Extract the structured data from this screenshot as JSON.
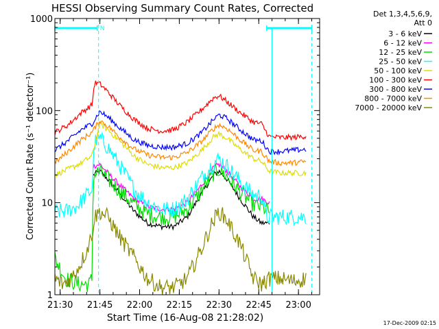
{
  "chart_data": {
    "type": "line",
    "title": "HESSI Observing Summary Count Rates, Corrected",
    "xlabel": "Start Time (16-Aug-08 21:28:02)",
    "ylabel": "Corrected Count Rate (s⁻¹ detector⁻¹)",
    "x_unit": "minutes after 21:28:02",
    "xlim": [
      0,
      100
    ],
    "ylim": [
      1,
      1000
    ],
    "y_scale": "log",
    "x_ticks": [
      {
        "x": 2,
        "label": "21:30"
      },
      {
        "x": 17,
        "label": "21:45"
      },
      {
        "x": 32,
        "label": "22:00"
      },
      {
        "x": 47,
        "label": "22:15"
      },
      {
        "x": 62,
        "label": "22:30"
      },
      {
        "x": 77,
        "label": "22:45"
      },
      {
        "x": 92,
        "label": "23:00"
      }
    ],
    "y_ticks": [
      {
        "y": 1,
        "label": "1"
      },
      {
        "y": 10,
        "label": "10"
      },
      {
        "y": 100,
        "label": "100"
      },
      {
        "y": 1000,
        "label": "1000"
      }
    ],
    "legend_title": [
      "Det 1,3,4,5,6,9,",
      "Att 0"
    ],
    "legend_placement": "right, outside plot",
    "series": [
      {
        "name": "3 - 6 keV",
        "color": "#000000",
        "x": [
          14.5,
          17,
          20,
          25,
          30,
          35,
          40,
          45,
          50,
          55,
          60,
          62,
          65,
          70,
          75,
          78,
          81
        ],
        "values": [
          20,
          22,
          18,
          12,
          8,
          6,
          5.5,
          5.5,
          7,
          12,
          20,
          22,
          18,
          11,
          7,
          6,
          6
        ]
      },
      {
        "name": "6 - 12 keV",
        "color": "#ff00ff",
        "x": [
          14.5,
          17,
          20,
          25,
          30,
          35,
          40,
          45,
          50,
          55,
          60,
          62,
          65,
          70,
          75,
          78,
          81
        ],
        "values": [
          25,
          26,
          21,
          15,
          11,
          9,
          8.5,
          8.5,
          10,
          15,
          24,
          26,
          22,
          15,
          11,
          11,
          10
        ]
      },
      {
        "name": "12 - 25 keV",
        "color": "#00dd00",
        "x": [
          0,
          4,
          9,
          13,
          14,
          14.5,
          17,
          20,
          25,
          30,
          35,
          40,
          45,
          50,
          55,
          60,
          62,
          65,
          70,
          75,
          78,
          81
        ],
        "values": [
          2.5,
          1.5,
          1.3,
          1.3,
          1.5,
          20,
          22,
          18,
          13,
          9.5,
          7.5,
          7,
          7,
          8.5,
          13,
          21,
          23,
          19,
          13,
          9.5,
          9,
          8
        ]
      },
      {
        "name": "25 - 50 keV",
        "color": "#00ffff",
        "x": [
          0,
          4,
          8,
          12,
          14,
          15,
          17,
          20,
          25,
          30,
          35,
          40,
          45,
          50,
          55,
          60,
          62,
          65,
          70,
          75,
          78,
          80,
          84,
          88,
          92,
          95
        ],
        "values": [
          8,
          8,
          9,
          12,
          14,
          45,
          50,
          40,
          24,
          14,
          10,
          8.5,
          8.5,
          11,
          18,
          27,
          30,
          25,
          17,
          12,
          12,
          7,
          7,
          7,
          7,
          7
        ]
      },
      {
        "name": "50 - 100 keV",
        "color": "#dddd00",
        "x": [
          0,
          5,
          10,
          14,
          17,
          20,
          25,
          30,
          35,
          40,
          45,
          50,
          55,
          60,
          62,
          65,
          70,
          75,
          78,
          81,
          85,
          90,
          95
        ],
        "values": [
          20,
          23,
          27,
          32,
          72,
          62,
          45,
          32,
          26,
          24,
          24,
          27,
          36,
          52,
          56,
          50,
          38,
          30,
          28,
          22,
          21,
          21,
          21
        ]
      },
      {
        "name": "100 - 300 keV",
        "color": "#ff0000",
        "x": [
          0,
          5,
          10,
          14,
          15,
          17,
          20,
          25,
          30,
          35,
          40,
          45,
          50,
          55,
          60,
          62,
          65,
          70,
          75,
          78,
          81,
          85,
          90,
          95
        ],
        "values": [
          58,
          70,
          95,
          115,
          200,
          195,
          160,
          110,
          80,
          64,
          60,
          62,
          75,
          100,
          138,
          145,
          125,
          95,
          75,
          72,
          52,
          51,
          51,
          53
        ]
      },
      {
        "name": "300 - 800 keV",
        "color": "#0000ff",
        "x": [
          0,
          5,
          10,
          14,
          17,
          20,
          25,
          30,
          35,
          40,
          45,
          50,
          55,
          60,
          62,
          65,
          70,
          75,
          78,
          81,
          85,
          90,
          95
        ],
        "values": [
          37,
          47,
          62,
          72,
          98,
          85,
          63,
          48,
          42,
          40,
          40,
          44,
          56,
          80,
          90,
          82,
          62,
          48,
          47,
          36,
          36,
          37,
          38
        ]
      },
      {
        "name": "800 - 7000 keV",
        "color": "#ff8800",
        "x": [
          0,
          5,
          10,
          14,
          17,
          20,
          25,
          30,
          35,
          40,
          45,
          50,
          55,
          60,
          62,
          65,
          70,
          75,
          78,
          81,
          85,
          90,
          95
        ],
        "values": [
          27,
          36,
          48,
          58,
          78,
          68,
          50,
          38,
          33,
          31,
          31,
          35,
          45,
          64,
          70,
          64,
          48,
          37,
          36,
          28,
          27,
          27,
          28
        ]
      },
      {
        "name": "7000 - 20000 keV",
        "color": "#888800",
        "x": [
          0,
          3,
          6,
          9,
          12,
          14,
          15,
          17,
          20,
          25,
          30,
          35,
          40,
          45,
          50,
          55,
          60,
          62,
          65,
          70,
          75,
          78,
          81,
          85,
          90,
          95
        ],
        "values": [
          1.5,
          1.3,
          1.5,
          2,
          3,
          4.5,
          7,
          8,
          7,
          4,
          2.5,
          1.5,
          1.2,
          1.2,
          1.5,
          3,
          6.5,
          8,
          6.5,
          3.5,
          1.5,
          1.3,
          1.5,
          1.5,
          1.4,
          1.5
        ]
      }
    ],
    "annotations": {
      "vertical_dashed_lines_x": [
        16.5,
        97
      ],
      "attenuator_window_x": [
        82,
        82
      ],
      "top_bars": [
        {
          "x_start": 0,
          "x_end": 16,
          "label": "N"
        },
        {
          "x_start": 80,
          "x_end": 97,
          "label": ""
        }
      ],
      "top_bar_color": "#00ffff"
    }
  },
  "footer": {
    "timestamp": "17-Dec-2009 02:15"
  }
}
